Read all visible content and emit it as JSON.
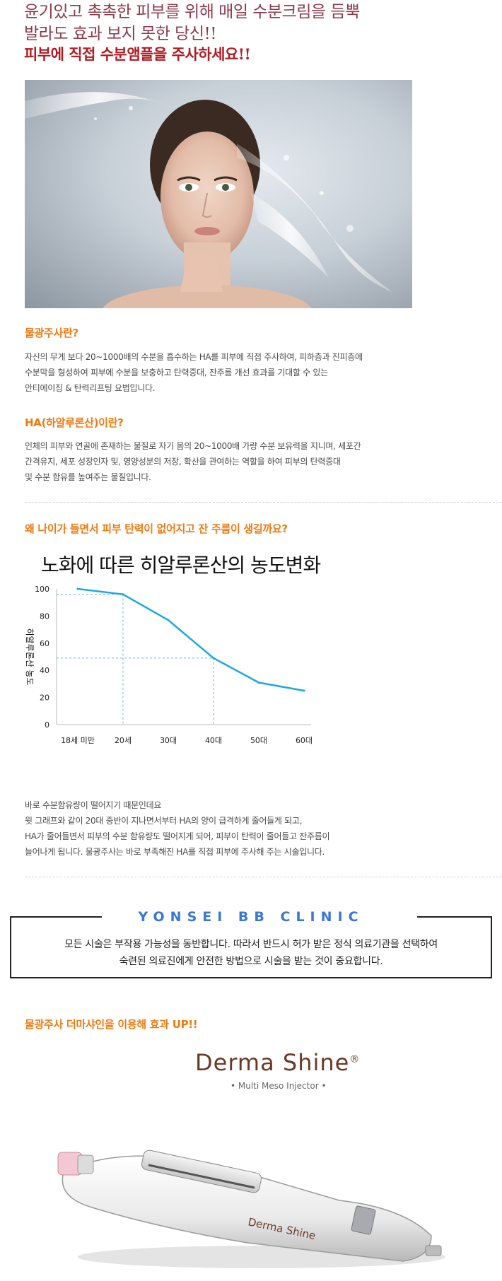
{
  "header": {
    "line1": "윤기있고 촉촉한 피부를 위해 매일 수분크림을 듬뿍",
    "line2": "발라도 효과 보지 못한 당신!!",
    "line3": "피부에 직접 수분앰플을 주사하세요!!"
  },
  "section_mulgwang": {
    "title": "물광주사란?",
    "lines": [
      "자신의 무게 보다 20~1000배의 수분을 흡수하는 HA를 피부에 직접 주사하여, 피하층과 진피층에",
      "수분막을 형성하여 피부에 수분을 보충하고 탄력증대, 잔주름 개선 효과를 기대할 수 있는",
      "안티에이징 & 탄력리프팅 요법입니다."
    ]
  },
  "section_ha": {
    "title": "HA(하알루론산)이란?",
    "lines": [
      "인체의 피부와 연골에 존재하는 물질로 자기 몸의 20~1000배 가량 수분 보유력을 지니며, 세포간",
      "간격유지, 세포 성장인자 및, 영양성분의 저장, 확산을 관여하는 역할을 하여 피부의 탄력증대",
      "및 수분 함유를 높여주는 물질입니다."
    ]
  },
  "section_why": {
    "title": "왜 나이가 들면서 피부 탄력이 없어지고 잔 주름이 생길까요?",
    "lines": [
      "바로 수분함유량이 떨어지기 때문인데요",
      "윗 그래프와 같이 20대 중반이 지나면서부터 HA의 양이 급격하게 줄어들게 되고,",
      "HA가 줄어들면서 피부의 수분 함유량도 떨어지게 되어, 피부이 탄력이 줄어들고 잔주름이",
      "늘어나게 됩니다. 물광주사는 바로 부족해진 HA를 직접 피부에 주사해 주는 시술입니다."
    ]
  },
  "chart_data": {
    "type": "line",
    "title": "노화에 따른 히알루론산의 농도변화",
    "ylabel": "히알루론산 농도",
    "xlabel": "",
    "categories": [
      "18세 미만",
      "20세",
      "30대",
      "40대",
      "50대",
      "60대"
    ],
    "values": [
      100,
      96,
      77,
      49,
      31,
      25
    ],
    "ylim": [
      0,
      100
    ],
    "yticks": [
      0,
      20,
      40,
      60,
      80,
      100
    ],
    "line_color": "#1aa8e6",
    "grid": false,
    "guides": [
      {
        "category": "20세",
        "value": 96
      },
      {
        "category": "40대",
        "value": 49
      }
    ]
  },
  "clinic": {
    "title": "YONSEI BB CLINIC",
    "line1": "모든 시술은 부작용 가능성을 동반합니다. 따라서 반드시 허가 받은 정식 의료기관을 선택하여",
    "line2": "숙련된 의료진에게 안전한 방법으로 시술을 받는 것이 중요합니다."
  },
  "derma": {
    "title": "물광주사 더마샤인을 이용해 효과 UP!!",
    "logo": "Derma Shine",
    "logo_mark": "®",
    "subtitle": "• Multi Meso Injector •",
    "device_label": "Derma Shine"
  },
  "colors": {
    "accent_orange": "#f07a12",
    "header_maroon": "#8e3a4b",
    "header_red": "#b01c22",
    "clinic_blue": "#3a78d8"
  }
}
